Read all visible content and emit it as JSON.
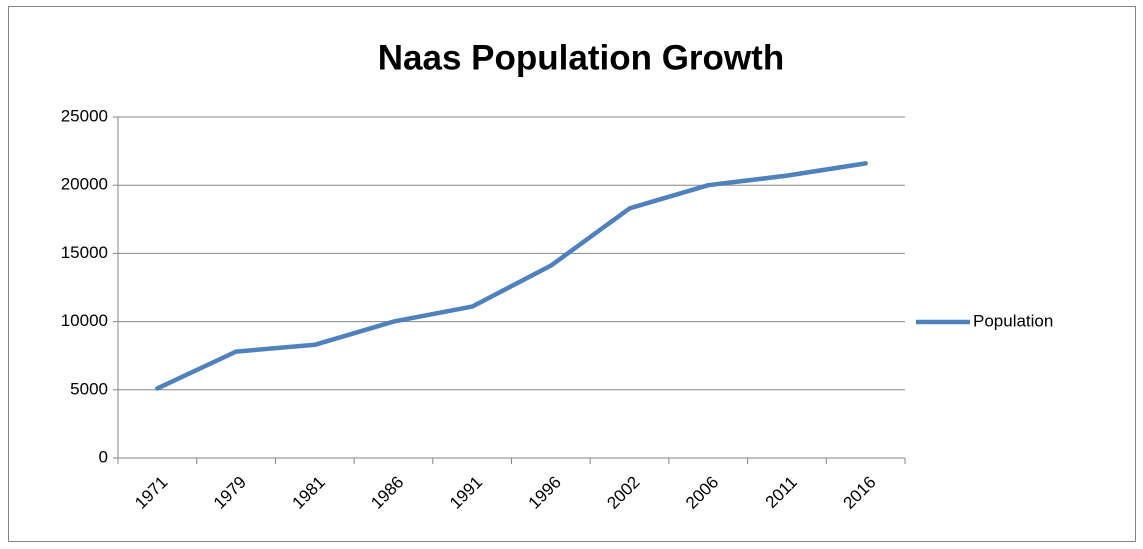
{
  "chart_data": {
    "type": "line",
    "title": "Naas Population Growth",
    "categories": [
      "1971",
      "1979",
      "1981",
      "1986",
      "1991",
      "1996",
      "2002",
      "2006",
      "2011",
      "2016"
    ],
    "series": [
      {
        "name": "Population",
        "color": "#4f81bd",
        "values": [
          5100,
          7800,
          8300,
          10000,
          11100,
          14100,
          18300,
          20000,
          20700,
          21600
        ]
      }
    ],
    "ylim": [
      0,
      25000
    ],
    "yticks": [
      0,
      5000,
      10000,
      15000,
      20000,
      25000
    ],
    "grid": true,
    "legend": "right"
  }
}
